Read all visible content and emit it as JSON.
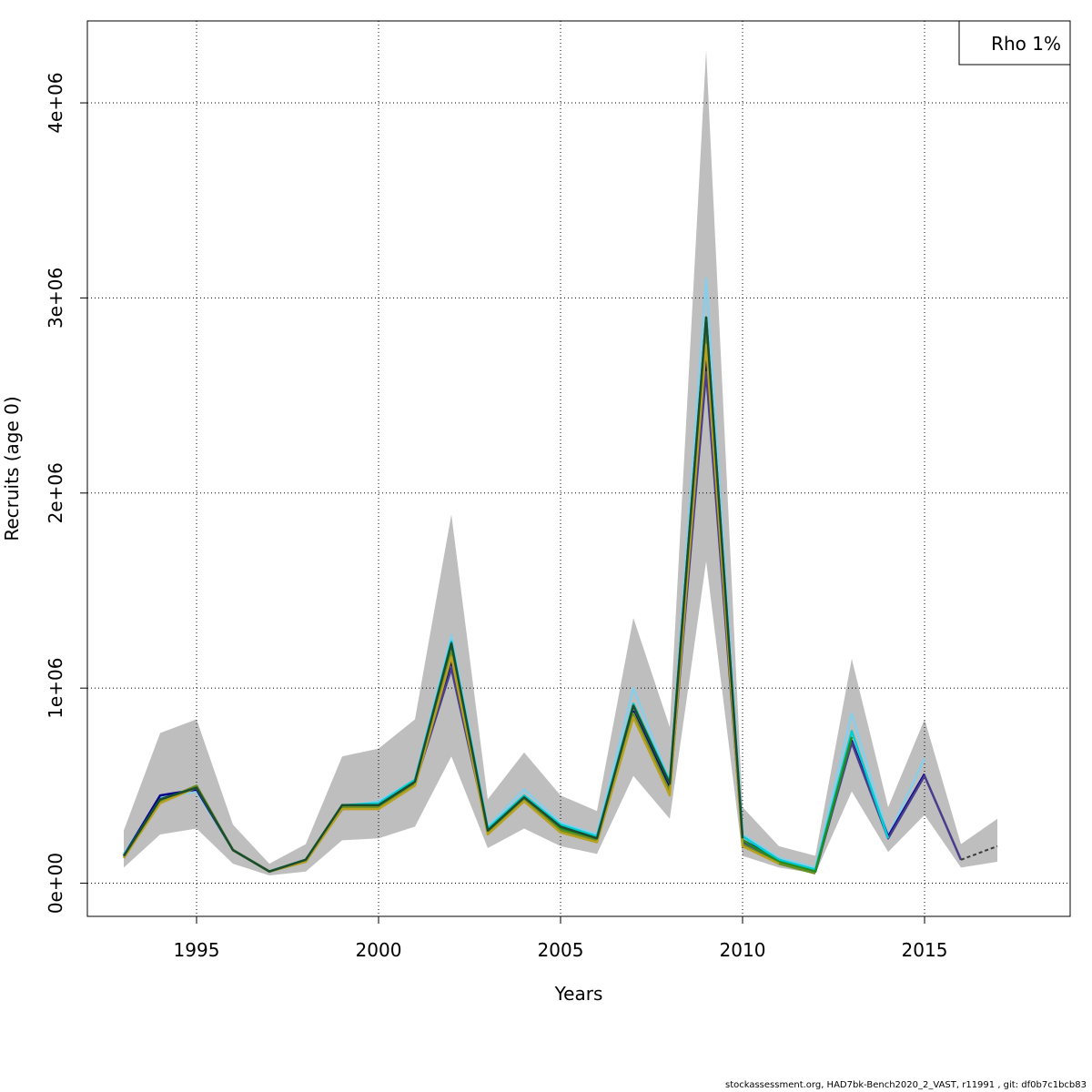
{
  "chart_data": {
    "type": "line",
    "xlabel": "Years",
    "ylabel": "Recruits (age 0)",
    "xlim": [
      1992,
      2019
    ],
    "ylim": [
      -170000,
      4420000
    ],
    "x_ticks": [
      1995,
      2000,
      2005,
      2010,
      2015
    ],
    "x_tick_labels": [
      "1995",
      "2000",
      "2005",
      "2010",
      "2015"
    ],
    "y_ticks": [
      0,
      1000000,
      2000000,
      3000000,
      4000000
    ],
    "y_tick_labels": [
      "0e+00",
      "1e+06",
      "2e+06",
      "3e+06",
      "4e+06"
    ],
    "grid": true,
    "legend": {
      "position": "top-right",
      "entries": [
        "Rho 1%"
      ]
    },
    "confidence_band": {
      "color": "#bebebe",
      "x": [
        1993,
        1994,
        1995,
        1996,
        1997,
        1998,
        1999,
        2000,
        2001,
        2002,
        2003,
        2004,
        2005,
        2006,
        2007,
        2008,
        2009,
        2010,
        2011,
        2012,
        2013,
        2014,
        2015,
        2016,
        2017
      ],
      "upper": [
        270000,
        770000,
        840000,
        300000,
        100000,
        200000,
        650000,
        690000,
        840000,
        1890000,
        430000,
        670000,
        450000,
        370000,
        1360000,
        800000,
        4270000,
        390000,
        190000,
        140000,
        1150000,
        390000,
        840000,
        200000,
        330000
      ],
      "lower": [
        80000,
        250000,
        280000,
        100000,
        40000,
        60000,
        220000,
        230000,
        290000,
        650000,
        180000,
        280000,
        190000,
        150000,
        550000,
        330000,
        1650000,
        140000,
        80000,
        50000,
        470000,
        160000,
        350000,
        80000,
        110000
      ]
    },
    "series": [
      {
        "color": "#87ceeb",
        "x": [
          1993,
          1994,
          1995,
          1996,
          1997,
          1998,
          1999,
          2000,
          2001,
          2002,
          2003,
          2004,
          2005,
          2006,
          2007,
          2008,
          2009,
          2010,
          2011,
          2012,
          2013,
          2014,
          2015
        ],
        "values": [
          150000,
          440000,
          470000,
          170000,
          60000,
          120000,
          390000,
          420000,
          530000,
          1270000,
          290000,
          480000,
          310000,
          250000,
          1000000,
          520000,
          3100000,
          250000,
          130000,
          80000,
          870000,
          240000,
          640000
        ]
      },
      {
        "color": "#00008b",
        "x": [
          1993,
          1994,
          1995,
          1996,
          1997,
          1998,
          1999,
          2000,
          2001,
          2002,
          2003,
          2004,
          2005,
          2006,
          2007,
          2008,
          2009,
          2010,
          2011,
          2012,
          2013,
          2014,
          2015
        ],
        "values": [
          140000,
          450000,
          480000,
          170000,
          60000,
          120000,
          380000,
          400000,
          520000,
          1140000,
          270000,
          440000,
          290000,
          240000,
          880000,
          490000,
          2680000,
          220000,
          120000,
          60000,
          730000,
          240000,
          560000
        ]
      },
      {
        "color": "#483d8b",
        "x": [
          1993,
          1994,
          1995,
          1996,
          1997,
          1998,
          1999,
          2000,
          2001,
          2002,
          2003,
          2004,
          2005,
          2006,
          2007,
          2008,
          2009,
          2010,
          2011,
          2012,
          2013,
          2014,
          2015,
          2016
        ],
        "values": [
          140000,
          430000,
          490000,
          170000,
          60000,
          120000,
          380000,
          390000,
          510000,
          1100000,
          270000,
          430000,
          280000,
          230000,
          860000,
          470000,
          2620000,
          210000,
          110000,
          60000,
          720000,
          230000,
          550000,
          120000
        ]
      },
      {
        "color": "#00ced1",
        "x": [
          1993,
          1994,
          1995,
          1996,
          1997,
          1998,
          1999,
          2000,
          2001,
          2002,
          2003,
          2004,
          2005,
          2006,
          2007,
          2008,
          2009,
          2010,
          2011,
          2012,
          2013,
          2014
        ],
        "values": [
          140000,
          430000,
          490000,
          170000,
          60000,
          120000,
          400000,
          410000,
          530000,
          1240000,
          280000,
          450000,
          300000,
          240000,
          920000,
          520000,
          2900000,
          240000,
          120000,
          70000,
          780000,
          230000
        ]
      },
      {
        "color": "#228b22",
        "x": [
          1993,
          1994,
          1995,
          1996,
          1997,
          1998,
          1999,
          2000,
          2001,
          2002,
          2003,
          2004,
          2005,
          2006,
          2007,
          2008,
          2009,
          2010,
          2011,
          2012,
          2013
        ],
        "values": [
          130000,
          420000,
          490000,
          170000,
          60000,
          120000,
          400000,
          400000,
          510000,
          1220000,
          270000,
          440000,
          280000,
          220000,
          910000,
          510000,
          2900000,
          220000,
          110000,
          60000,
          750000
        ]
      },
      {
        "color": "#6b8e23",
        "x": [
          1993,
          1994,
          1995,
          1996,
          1997,
          1998,
          1999,
          2000,
          2001,
          2002,
          2003,
          2004,
          2005,
          2006,
          2007,
          2008,
          2009,
          2010,
          2011,
          2012
        ],
        "values": [
          130000,
          420000,
          500000,
          170000,
          60000,
          110000,
          390000,
          390000,
          510000,
          1180000,
          260000,
          430000,
          270000,
          220000,
          870000,
          470000,
          2820000,
          200000,
          100000,
          50000
        ]
      },
      {
        "color": "#b8a020",
        "x": [
          1993,
          1994,
          1995,
          1996,
          1997,
          1998,
          1999,
          2000,
          2001,
          2002,
          2003,
          2004,
          2005,
          2006,
          2007,
          2008,
          2009,
          2010,
          2011
        ],
        "values": [
          130000,
          410000,
          490000,
          170000,
          60000,
          110000,
          380000,
          380000,
          500000,
          1160000,
          250000,
          420000,
          260000,
          210000,
          850000,
          450000,
          2760000,
          190000,
          100000
        ]
      },
      {
        "color": "#1a4d2e",
        "x": [
          1993,
          1994,
          1995,
          1996,
          1997,
          1998,
          1999,
          2000,
          2001,
          2002,
          2003,
          2004,
          2005,
          2006,
          2007,
          2008,
          2009,
          2010
        ],
        "values": [
          140000,
          430000,
          490000,
          170000,
          60000,
          120000,
          400000,
          400000,
          520000,
          1230000,
          270000,
          440000,
          290000,
          230000,
          910000,
          510000,
          2900000,
          230000
        ]
      },
      {
        "color": "#3a3a3a",
        "dashed": true,
        "x": [
          2016,
          2017
        ],
        "values": [
          120000,
          190000
        ]
      }
    ]
  },
  "footer": "stockassessment.org, HAD7bk-Bench2020_2_VAST, r11991 , git: df0b7c1bcb83"
}
